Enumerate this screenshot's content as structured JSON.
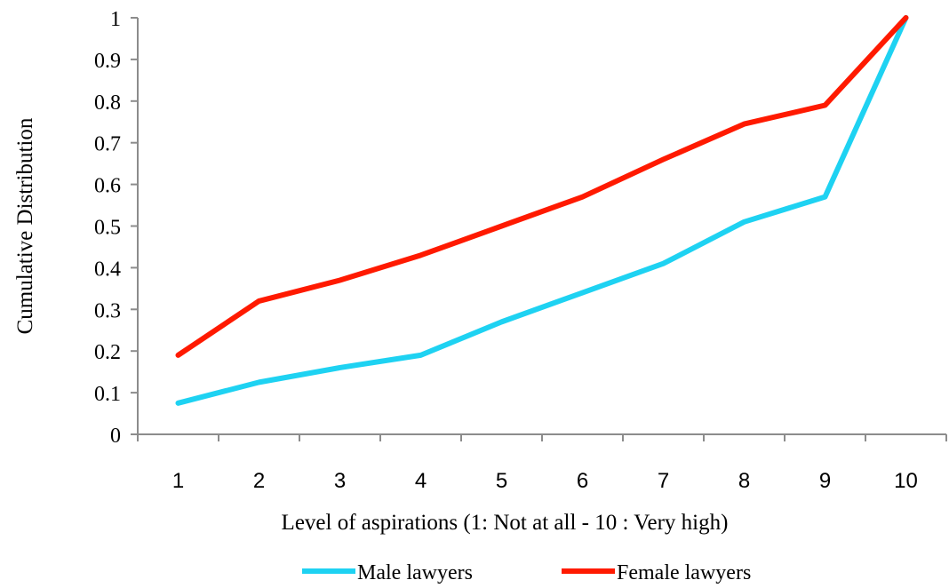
{
  "chart_data": {
    "type": "line",
    "x": [
      1,
      2,
      3,
      4,
      5,
      6,
      7,
      8,
      9,
      10
    ],
    "categories": [
      "1",
      "2",
      "3",
      "4",
      "5",
      "6",
      "7",
      "8",
      "9",
      "10"
    ],
    "series": [
      {
        "name": "Male lawyers",
        "color": "#1ed2f2",
        "values": [
          0.075,
          0.125,
          0.16,
          0.19,
          0.27,
          0.34,
          0.41,
          0.51,
          0.57,
          1.0
        ]
      },
      {
        "name": "Female lawyers",
        "color": "#ff1a00",
        "values": [
          0.19,
          0.32,
          0.37,
          0.43,
          0.5,
          0.57,
          0.66,
          0.745,
          0.79,
          1.0
        ]
      }
    ],
    "xlabel": "Level of aspirations (1: Not at all - 10 : Very high)",
    "ylabel": "Cumulative Distribution",
    "ylim": [
      0,
      1
    ],
    "yticks": [
      "0",
      "0.1",
      "0.2",
      "0.3",
      "0.4",
      "0.5",
      "0.6",
      "0.7",
      "0.8",
      "0.9",
      "1"
    ],
    "grid": false,
    "legend": "bottom"
  }
}
